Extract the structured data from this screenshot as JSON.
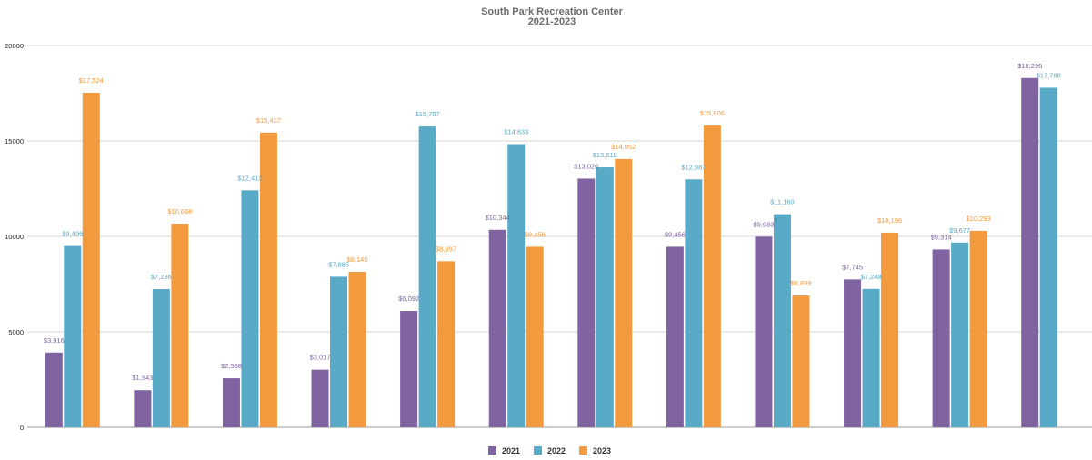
{
  "chart_data": {
    "type": "bar",
    "title": "South Park Recreation Center",
    "subtitle": "2021-2023",
    "xlabel": "",
    "ylabel": "",
    "ylim": [
      0,
      20000
    ],
    "y_ticks": [
      "0",
      "5000",
      "10000",
      "15000",
      "20000"
    ],
    "grid": true,
    "legend_position": "bottom",
    "categories": [
      "",
      "",
      "",
      "",
      "",
      "",
      "",
      "",
      "",
      "",
      "",
      ""
    ],
    "series": [
      {
        "name": "2021",
        "color": "#8064a2",
        "values": [
          3916,
          1943,
          2568,
          3017,
          6092,
          10344,
          13026,
          9456,
          9983,
          7745,
          9314,
          18296
        ],
        "labels": [
          "$3,916",
          "$1,943",
          "$2,568",
          "$3,017",
          "$6,092",
          "$10,344",
          "$13,026",
          "$9,456",
          "$9,983",
          "$7,745",
          "$9,314",
          "$18,296"
        ]
      },
      {
        "name": "2022",
        "color": "#59aac7",
        "values": [
          9496,
          7236,
          12413,
          7885,
          15757,
          14833,
          13618,
          12987,
          11160,
          7248,
          9677,
          17788
        ],
        "labels": [
          "$9,496",
          "$7,236",
          "$12,413",
          "$7,885",
          "$15,757",
          "$14,833",
          "$13,618",
          "$12,987",
          "$11,160",
          "$7,248",
          "$9,677",
          "$17,788"
        ]
      },
      {
        "name": "2023",
        "color": "#f39a3e",
        "values": [
          17524,
          10668,
          15437,
          8140,
          8697,
          9456,
          14052,
          15806,
          6899,
          10196,
          10293,
          null
        ],
        "labels": [
          "$17,524",
          "$10,668",
          "$15,437",
          "$8,140",
          "$8,697",
          "$9,456",
          "$14,052",
          "$15,806",
          "$6,899",
          "$10,196",
          "$10,293",
          null
        ]
      }
    ]
  }
}
